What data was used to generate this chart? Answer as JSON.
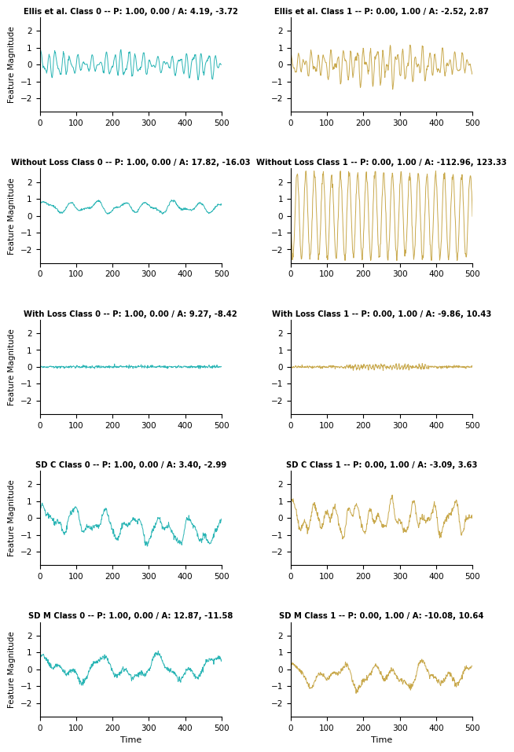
{
  "titles": [
    [
      "Ellis et al. Class 0 -- P: 1.00, 0.00 / A: 4.19, -3.72",
      "Ellis et al. Class 1 -- P: 0.00, 1.00 / A: -2.52, 2.87"
    ],
    [
      "Without Loss Class 0 -- P: 1.00, 0.00 / A: 17.82, -16.03",
      "Without Loss Class 1 -- P: 0.00, 1.00 / A: -112.96, 123.33"
    ],
    [
      "With Loss Class 0 -- P: 1.00, 0.00 / A: 9.27, -8.42",
      "With Loss Class 1 -- P: 0.00, 1.00 / A: -9.86, 10.43"
    ],
    [
      "SD C Class 0 -- P: 1.00, 0.00 / A: 3.40, -2.99",
      "SD C Class 1 -- P: 0.00, 1.00 / A: -3.09, 3.63"
    ],
    [
      "SD M Class 0 -- P: 1.00, 0.00 / A: 12.87, -11.58",
      "SD M Class 1 -- P: 0.00, 1.00 / A: -10.08, 10.64"
    ]
  ],
  "color_class0": "#2ab5b5",
  "color_class1": "#c8a84b",
  "ylim": [
    -2.8,
    2.8
  ],
  "yticks": [
    -2,
    -1,
    0,
    1,
    2
  ],
  "xlim": [
    0,
    500
  ],
  "xticks": [
    0,
    100,
    200,
    300,
    400,
    500
  ],
  "ylabel": "Feature Magnitude",
  "xlabel": "Time",
  "n": 512
}
